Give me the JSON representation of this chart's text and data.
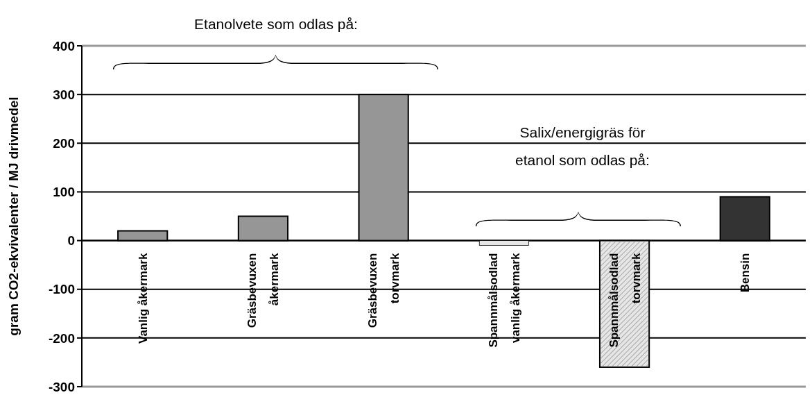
{
  "chart_data": {
    "type": "bar",
    "ylabel": "gram CO2-ekvivalenter / MJ drivmedel",
    "categories": [
      "Vanlig åkermark",
      "Gräsbevuxen\nåkermark",
      "Gräsbevuxen\ntorvmark",
      "Spannmålsodlad\nvanlig åkermark",
      "Spannmålsodlad\ntorvmark",
      "Bensin"
    ],
    "values": [
      20,
      50,
      300,
      -10,
      -260,
      90
    ],
    "colors": [
      "#969696",
      "#969696",
      "#969696",
      "#e6e6e6",
      "#e6e6e6",
      "#333333"
    ],
    "ylim": [
      -300,
      400
    ],
    "yticks": [
      -300,
      -200,
      -100,
      0,
      100,
      200,
      300,
      400
    ],
    "grid": "y",
    "annotations": [
      "Etanolvete som odlas på:",
      "Salix/energigräs för\netanol som odlas på:"
    ]
  }
}
